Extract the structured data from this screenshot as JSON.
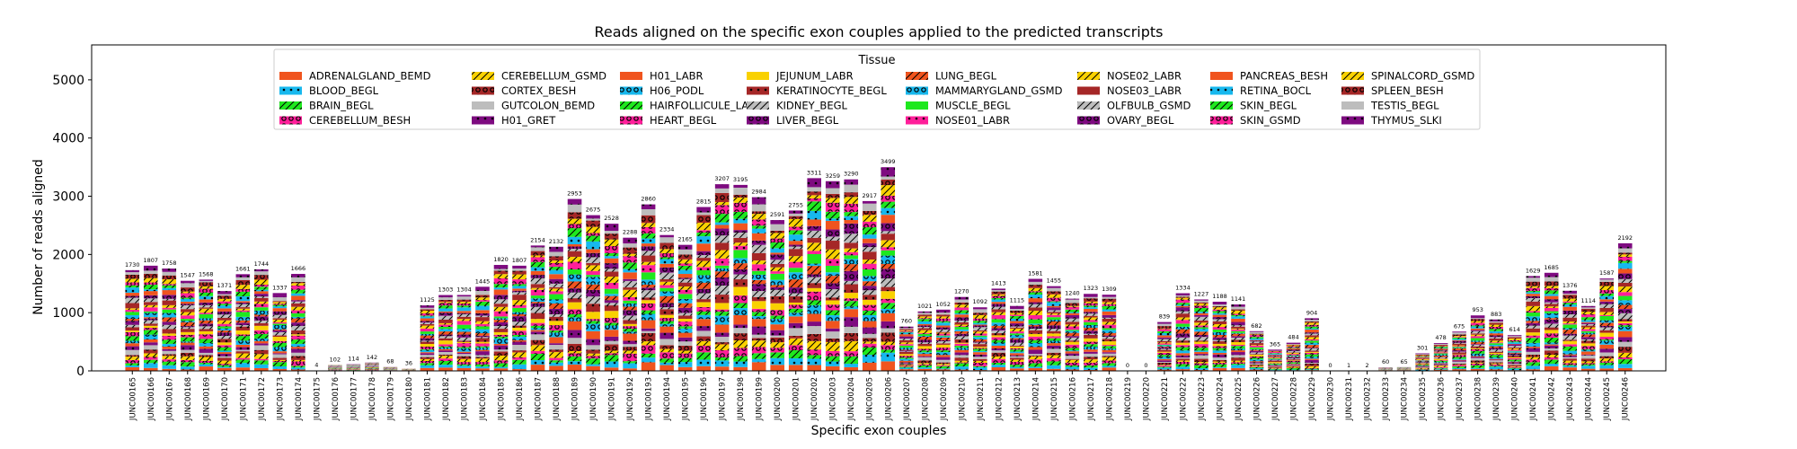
{
  "chart_data": {
    "type": "bar",
    "stacked": true,
    "title": "Reads aligned on the specific exon couples applied to the predicted transcripts",
    "xlabel": "Specific exon couples",
    "ylabel": "Number of reads aligned",
    "ylim": [
      0,
      5600
    ],
    "yticks": [
      0,
      1000,
      2000,
      3000,
      4000,
      5000
    ],
    "grid": false,
    "legend": {
      "title": "Tissue",
      "placement": "top-center",
      "columns": 9
    },
    "categories": [
      "JUNC00165",
      "JUNC00166",
      "JUNC00167",
      "JUNC00168",
      "JUNC00169",
      "JUNC00170",
      "JUNC00171",
      "JUNC00172",
      "JUNC00173",
      "JUNC00174",
      "JUNC00175",
      "JUNC00176",
      "JUNC00177",
      "JUNC00178",
      "JUNC00179",
      "JUNC00180",
      "JUNC00181",
      "JUNC00182",
      "JUNC00183",
      "JUNC00184",
      "JUNC00185",
      "JUNC00186",
      "JUNC00187",
      "JUNC00188",
      "JUNC00189",
      "JUNC00190",
      "JUNC00191",
      "JUNC00192",
      "JUNC00193",
      "JUNC00194",
      "JUNC00195",
      "JUNC00196",
      "JUNC00197",
      "JUNC00198",
      "JUNC00199",
      "JUNC00200",
      "JUNC00201",
      "JUNC00202",
      "JUNC00203",
      "JUNC00204",
      "JUNC00205",
      "JUNC00206",
      "JUNC00207",
      "JUNC00208",
      "JUNC00209",
      "JUNC00210",
      "JUNC00211",
      "JUNC00212",
      "JUNC00213",
      "JUNC00214",
      "JUNC00215",
      "JUNC00216",
      "JUNC00217",
      "JUNC00218",
      "JUNC00219",
      "JUNC00220",
      "JUNC00221",
      "JUNC00222",
      "JUNC00223",
      "JUNC00224",
      "JUNC00225",
      "JUNC00226",
      "JUNC00227",
      "JUNC00228",
      "JUNC00229",
      "JUNC00230",
      "JUNC00231",
      "JUNC00232",
      "JUNC00233",
      "JUNC00234",
      "JUNC00235",
      "JUNC00236",
      "JUNC00237",
      "JUNC00238",
      "JUNC00239",
      "JUNC00240",
      "JUNC00241",
      "JUNC00242",
      "JUNC00243",
      "JUNC00244",
      "JUNC00245",
      "JUNC00246"
    ],
    "totals": [
      1730,
      1807,
      1758,
      1547,
      1568,
      1371,
      1661,
      1744,
      1337,
      1666,
      4,
      102,
      114,
      142,
      68,
      36,
      1125,
      1303,
      1304,
      1445,
      1820,
      1807,
      2154,
      2132,
      2953,
      2675,
      2528,
      2288,
      2860,
      2334,
      2165,
      2815,
      3207,
      3195,
      2984,
      2591,
      2755,
      3311,
      3259,
      3290,
      2917,
      3499,
      760,
      1021,
      1052,
      1270,
      1092,
      1413,
      1115,
      1581,
      1455,
      1240,
      1323,
      1309,
      0,
      0,
      839,
      1334,
      1227,
      1188,
      1141,
      682,
      365,
      484,
      904,
      0,
      1,
      2,
      60,
      65,
      301,
      478,
      675,
      953,
      883,
      614,
      1629,
      1685,
      1376,
      1114,
      1587,
      2192
    ],
    "series": [
      {
        "name": "ADRENALGLAND_BEMD",
        "color": "#f0541e",
        "pattern": "none"
      },
      {
        "name": "BLOOD_BEGL",
        "color": "#17b8ee",
        "pattern": "dot"
      },
      {
        "name": "BRAIN_BEGL",
        "color": "#1ee81e",
        "pattern": "slash"
      },
      {
        "name": "CEREBELLUM_BESH",
        "color": "#ff1f9a",
        "pattern": "ring"
      },
      {
        "name": "CEREBELLUM_GSMD",
        "color": "#f9d100",
        "pattern": "slash"
      },
      {
        "name": "CORTEX_BESH",
        "color": "#a52727",
        "pattern": "ring"
      },
      {
        "name": "GUTCOLON_BEMD",
        "color": "#bdbdbd",
        "pattern": "none"
      },
      {
        "name": "H01_GRET",
        "color": "#7e0b80",
        "pattern": "dot"
      },
      {
        "name": "H01_LABR",
        "color": "#f0541e",
        "pattern": "none"
      },
      {
        "name": "H06_PODL",
        "color": "#17b8ee",
        "pattern": "ring"
      },
      {
        "name": "HAIRFOLLICULE_LABR",
        "color": "#1ee81e",
        "pattern": "slash"
      },
      {
        "name": "HEART_BEGL",
        "color": "#ff1f9a",
        "pattern": "ring"
      },
      {
        "name": "JEJUNUM_LABR",
        "color": "#f9d100",
        "pattern": "none"
      },
      {
        "name": "KERATINOCYTE_BEGL",
        "color": "#a52727",
        "pattern": "dot"
      },
      {
        "name": "KIDNEY_BEGL",
        "color": "#bdbdbd",
        "pattern": "slash"
      },
      {
        "name": "LIVER_BEGL",
        "color": "#7e0b80",
        "pattern": "ring"
      },
      {
        "name": "LUNG_BEGL",
        "color": "#f0541e",
        "pattern": "slash"
      },
      {
        "name": "MAMMARYGLAND_GSMD",
        "color": "#17b8ee",
        "pattern": "ring"
      },
      {
        "name": "MUSCLE_BEGL",
        "color": "#1ee81e",
        "pattern": "none"
      },
      {
        "name": "NOSE01_LABR",
        "color": "#ff1f9a",
        "pattern": "dot"
      },
      {
        "name": "NOSE02_LABR",
        "color": "#f9d100",
        "pattern": "slash"
      },
      {
        "name": "NOSE03_LABR",
        "color": "#a52727",
        "pattern": "none"
      },
      {
        "name": "OLFBULB_GSMD",
        "color": "#bdbdbd",
        "pattern": "slash"
      },
      {
        "name": "OVARY_BEGL",
        "color": "#7e0b80",
        "pattern": "ring"
      },
      {
        "name": "PANCREAS_BESH",
        "color": "#f0541e",
        "pattern": "none"
      },
      {
        "name": "RETINA_BOCL",
        "color": "#17b8ee",
        "pattern": "dot"
      },
      {
        "name": "SKIN_BEGL",
        "color": "#1ee81e",
        "pattern": "slash"
      },
      {
        "name": "SKIN_GSMD",
        "color": "#ff1f9a",
        "pattern": "ring"
      },
      {
        "name": "SPINALCORD_GSMD",
        "color": "#f9d100",
        "pattern": "slash"
      },
      {
        "name": "SPLEEN_BESH",
        "color": "#a52727",
        "pattern": "ring"
      },
      {
        "name": "TESTIS_BEGL",
        "color": "#bdbdbd",
        "pattern": "none"
      },
      {
        "name": "THYMUS_SLKI",
        "color": "#7e0b80",
        "pattern": "dot"
      }
    ]
  }
}
